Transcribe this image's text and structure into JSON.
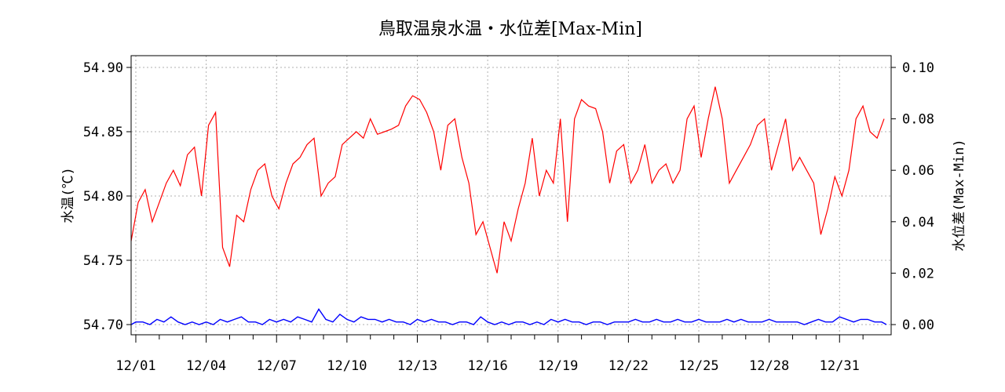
{
  "chart_data": {
    "type": "line",
    "title": "鳥取温泉水温・水位差[Max-Min]",
    "ylabel_left": "水温(℃)",
    "ylabel_right": "水位差(Max-Min)",
    "ylim_left": [
      54.7,
      54.9
    ],
    "ylim_right": [
      0.0,
      0.1
    ],
    "yticks_left": [
      "54.70",
      "54.75",
      "54.80",
      "54.85",
      "54.90"
    ],
    "yticks_right": [
      "0.00",
      "0.02",
      "0.04",
      "0.06",
      "0.08",
      "0.10"
    ],
    "xlim_days": [
      -0.2,
      32.2
    ],
    "xticks": [
      "12/01",
      "12/04",
      "12/07",
      "12/10",
      "12/13",
      "12/16",
      "12/19",
      "12/22",
      "12/25",
      "12/28",
      "12/31"
    ],
    "grid": true,
    "colors": {
      "temperature": "#ff0000",
      "water_level_diff": "#0000ff",
      "grid": "#b0b0b0"
    },
    "series": [
      {
        "axis": "left",
        "color": "#ff0000",
        "day": [
          -0.2,
          0.1,
          0.4,
          0.7,
          1.0,
          1.3,
          1.6,
          1.9,
          2.2,
          2.5,
          2.8,
          3.1,
          3.4,
          3.7,
          4.0,
          4.3,
          4.6,
          4.9,
          5.2,
          5.5,
          5.8,
          6.1,
          6.4,
          6.7,
          7.0,
          7.3,
          7.6,
          7.9,
          8.2,
          8.5,
          8.8,
          9.1,
          9.4,
          9.7,
          10.0,
          10.3,
          10.6,
          10.9,
          11.2,
          11.5,
          11.8,
          12.1,
          12.4,
          12.7,
          13.0,
          13.3,
          13.6,
          13.9,
          14.2,
          14.5,
          14.8,
          15.1,
          15.4,
          15.7,
          16.0,
          16.3,
          16.6,
          16.9,
          17.2,
          17.5,
          17.8,
          18.1,
          18.4,
          18.7,
          19.0,
          19.3,
          19.6,
          19.9,
          20.2,
          20.5,
          20.8,
          21.1,
          21.4,
          21.7,
          22.0,
          22.3,
          22.6,
          22.9,
          23.2,
          23.5,
          23.8,
          24.1,
          24.4,
          24.7,
          25.0,
          25.3,
          25.6,
          25.9,
          26.2,
          26.5,
          26.8,
          27.1,
          27.4,
          27.7,
          28.0,
          28.3,
          28.6,
          28.9,
          29.2,
          29.5,
          29.8,
          30.1,
          30.4,
          30.7,
          31.0,
          31.3,
          31.6,
          31.9
        ],
        "values": [
          54.765,
          54.795,
          54.805,
          54.78,
          54.795,
          54.81,
          54.82,
          54.808,
          54.832,
          54.838,
          54.8,
          54.855,
          54.865,
          54.76,
          54.745,
          54.785,
          54.78,
          54.805,
          54.82,
          54.825,
          54.8,
          54.79,
          54.81,
          54.825,
          54.83,
          54.84,
          54.845,
          54.8,
          54.81,
          54.815,
          54.84,
          54.845,
          54.85,
          54.845,
          54.86,
          54.848,
          54.85,
          54.852,
          54.855,
          54.87,
          54.878,
          54.875,
          54.865,
          54.85,
          54.82,
          54.855,
          54.86,
          54.83,
          54.81,
          54.77,
          54.78,
          54.76,
          54.74,
          54.78,
          54.765,
          54.79,
          54.81,
          54.845,
          54.8,
          54.82,
          54.81,
          54.86,
          54.78,
          54.86,
          54.875,
          54.87,
          54.868,
          54.85,
          54.81,
          54.835,
          54.84,
          54.81,
          54.82,
          54.84,
          54.81,
          54.82,
          54.825,
          54.81,
          54.82,
          54.86,
          54.87,
          54.83,
          54.86,
          54.885,
          54.86,
          54.81,
          54.82,
          54.83,
          54.84,
          54.855,
          54.86,
          54.82,
          54.84,
          54.86,
          54.82,
          54.83,
          54.82,
          54.81,
          54.77,
          54.79,
          54.815,
          54.8,
          54.82,
          54.86,
          54.87,
          54.85,
          54.845,
          54.86
        ]
      },
      {
        "axis": "right",
        "color": "#0000ff",
        "day": [
          -0.2,
          0.0,
          0.3,
          0.6,
          0.9,
          1.2,
          1.5,
          1.8,
          2.1,
          2.4,
          2.7,
          3.0,
          3.3,
          3.6,
          3.9,
          4.2,
          4.5,
          4.8,
          5.1,
          5.4,
          5.7,
          6.0,
          6.3,
          6.6,
          6.9,
          7.2,
          7.5,
          7.8,
          8.1,
          8.4,
          8.7,
          9.0,
          9.3,
          9.6,
          9.9,
          10.2,
          10.5,
          10.8,
          11.1,
          11.4,
          11.7,
          12.0,
          12.3,
          12.6,
          12.9,
          13.2,
          13.5,
          13.8,
          14.1,
          14.4,
          14.7,
          15.0,
          15.3,
          15.6,
          15.9,
          16.2,
          16.5,
          16.8,
          17.1,
          17.4,
          17.7,
          18.0,
          18.3,
          18.6,
          18.9,
          19.2,
          19.5,
          19.8,
          20.1,
          20.4,
          20.7,
          21.0,
          21.3,
          21.6,
          21.9,
          22.2,
          22.5,
          22.8,
          23.1,
          23.4,
          23.7,
          24.0,
          24.3,
          24.6,
          24.9,
          25.2,
          25.5,
          25.8,
          26.1,
          26.4,
          26.7,
          27.0,
          27.3,
          27.6,
          27.9,
          28.2,
          28.5,
          28.8,
          29.1,
          29.4,
          29.7,
          30.0,
          30.3,
          30.6,
          30.9,
          31.2,
          31.5,
          31.8,
          32.0
        ],
        "values": [
          0.0,
          0.001,
          0.001,
          0.0,
          0.002,
          0.001,
          0.003,
          0.001,
          0.0,
          0.001,
          0.0,
          0.001,
          0.0,
          0.002,
          0.001,
          0.002,
          0.003,
          0.001,
          0.001,
          0.0,
          0.002,
          0.001,
          0.002,
          0.001,
          0.003,
          0.002,
          0.001,
          0.006,
          0.002,
          0.001,
          0.004,
          0.002,
          0.001,
          0.003,
          0.002,
          0.002,
          0.001,
          0.002,
          0.001,
          0.001,
          0.0,
          0.002,
          0.001,
          0.002,
          0.001,
          0.001,
          0.0,
          0.001,
          0.001,
          0.0,
          0.003,
          0.001,
          0.0,
          0.001,
          0.0,
          0.001,
          0.001,
          0.0,
          0.001,
          0.0,
          0.002,
          0.001,
          0.002,
          0.001,
          0.001,
          0.0,
          0.001,
          0.001,
          0.0,
          0.001,
          0.001,
          0.001,
          0.002,
          0.001,
          0.001,
          0.002,
          0.001,
          0.001,
          0.002,
          0.001,
          0.001,
          0.002,
          0.001,
          0.001,
          0.001,
          0.002,
          0.001,
          0.002,
          0.001,
          0.001,
          0.001,
          0.002,
          0.001,
          0.001,
          0.001,
          0.001,
          0.0,
          0.001,
          0.002,
          0.001,
          0.001,
          0.003,
          0.002,
          0.001,
          0.002,
          0.002,
          0.001,
          0.001,
          0.0
        ]
      }
    ]
  }
}
